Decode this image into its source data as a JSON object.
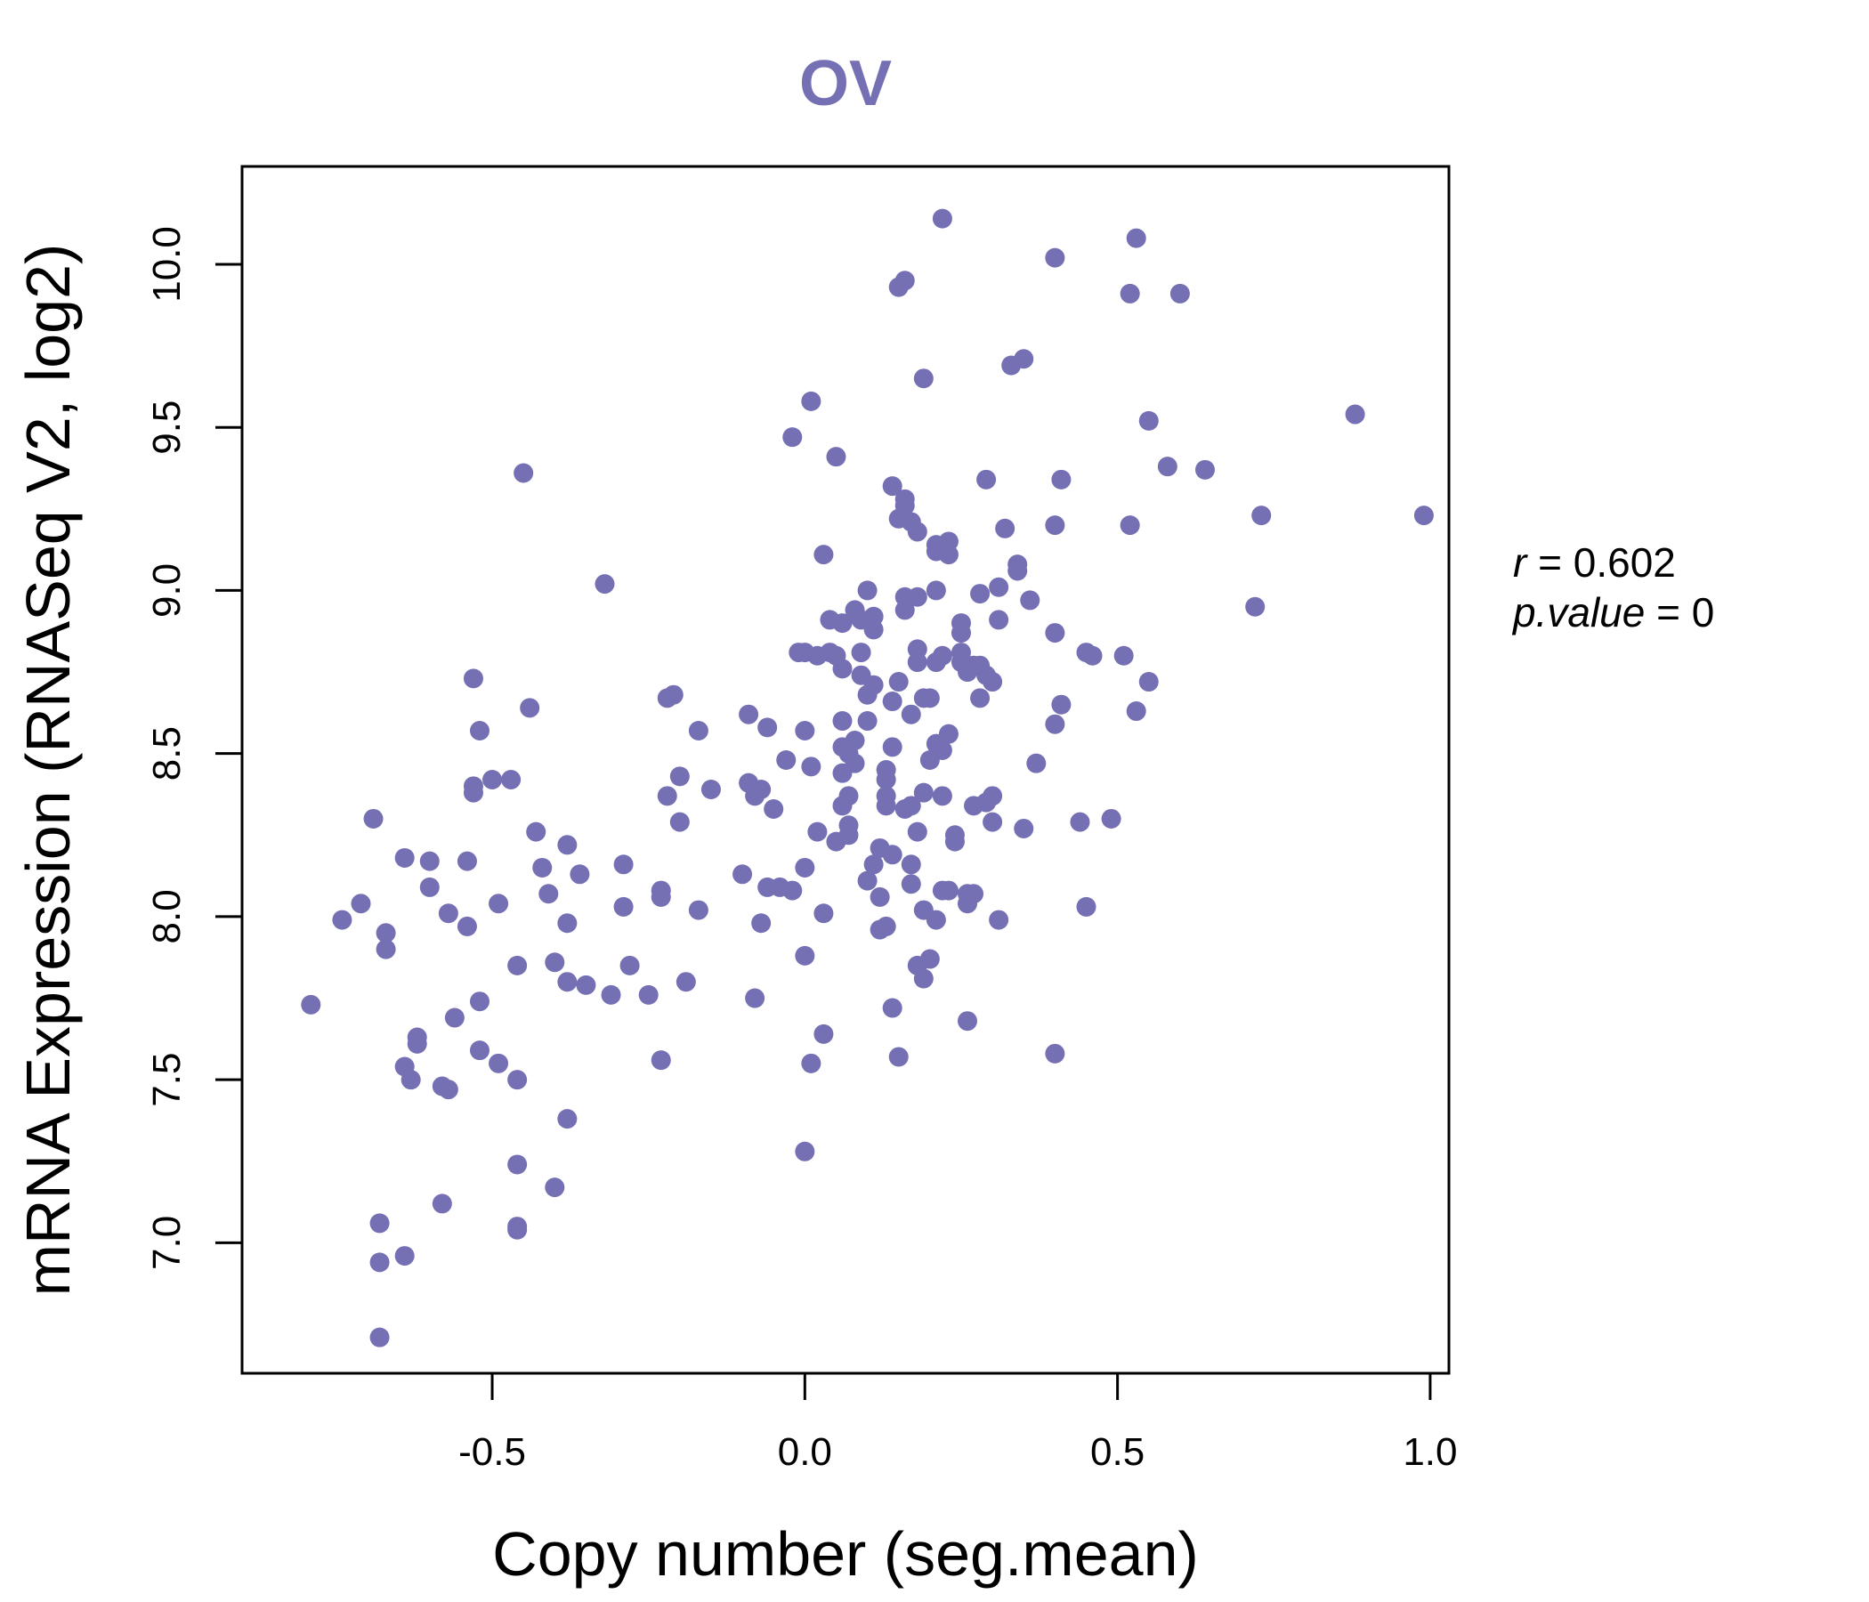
{
  "colors": {
    "accent": "#7570b3",
    "axis": "#000000",
    "background": "#ffffff"
  },
  "chart_data": {
    "type": "scatter",
    "title": "OV",
    "xlabel": "Copy number (seg.mean)",
    "ylabel": "mRNA Expression (RNASeq V2, log2)",
    "xlim": [
      -0.9,
      1.03
    ],
    "ylim": [
      6.6,
      10.3
    ],
    "xticks": [
      -0.5,
      0.0,
      0.5,
      1.0
    ],
    "xtick_labels": [
      "-0.5",
      "0.0",
      "0.5",
      "1.0"
    ],
    "yticks": [
      7.0,
      7.5,
      8.0,
      8.5,
      9.0,
      9.5,
      10.0
    ],
    "ytick_labels": [
      "7.0",
      "7.5",
      "8.0",
      "8.5",
      "9.0",
      "9.5",
      "10.0"
    ],
    "stats": {
      "r_label": "r",
      "r_value": "0.602",
      "p_label": "p.value",
      "p_value": "0"
    },
    "points": [
      [
        -0.79,
        7.73
      ],
      [
        -0.74,
        7.99
      ],
      [
        -0.71,
        8.04
      ],
      [
        -0.69,
        8.3
      ],
      [
        -0.68,
        7.06
      ],
      [
        -0.68,
        6.94
      ],
      [
        -0.68,
        6.71
      ],
      [
        -0.67,
        7.95
      ],
      [
        -0.67,
        7.9
      ],
      [
        -0.64,
        8.18
      ],
      [
        -0.64,
        7.54
      ],
      [
        -0.63,
        7.5
      ],
      [
        -0.64,
        6.96
      ],
      [
        -0.62,
        7.63
      ],
      [
        -0.62,
        7.61
      ],
      [
        -0.6,
        8.17
      ],
      [
        -0.6,
        8.09
      ],
      [
        -0.58,
        7.48
      ],
      [
        -0.57,
        7.47
      ],
      [
        -0.58,
        7.12
      ],
      [
        -0.57,
        8.01
      ],
      [
        -0.56,
        7.69
      ],
      [
        -0.54,
        8.17
      ],
      [
        -0.54,
        7.97
      ],
      [
        -0.53,
        8.4
      ],
      [
        -0.53,
        8.38
      ],
      [
        -0.53,
        8.73
      ],
      [
        -0.52,
        8.57
      ],
      [
        -0.52,
        7.74
      ],
      [
        -0.52,
        7.59
      ],
      [
        -0.5,
        8.42
      ],
      [
        -0.49,
        8.04
      ],
      [
        -0.49,
        7.55
      ],
      [
        -0.47,
        8.42
      ],
      [
        -0.46,
        7.85
      ],
      [
        -0.46,
        7.5
      ],
      [
        -0.46,
        7.24
      ],
      [
        -0.46,
        7.05
      ],
      [
        -0.46,
        7.04
      ],
      [
        -0.45,
        9.36
      ],
      [
        -0.44,
        8.64
      ],
      [
        -0.43,
        8.26
      ],
      [
        -0.42,
        8.15
      ],
      [
        -0.41,
        8.07
      ],
      [
        -0.4,
        7.86
      ],
      [
        -0.4,
        7.17
      ],
      [
        -0.38,
        8.22
      ],
      [
        -0.38,
        7.98
      ],
      [
        -0.38,
        7.8
      ],
      [
        -0.38,
        7.38
      ],
      [
        -0.36,
        8.13
      ],
      [
        -0.35,
        7.79
      ],
      [
        -0.32,
        9.02
      ],
      [
        -0.31,
        7.76
      ],
      [
        -0.29,
        8.16
      ],
      [
        -0.29,
        8.03
      ],
      [
        -0.28,
        7.85
      ],
      [
        -0.25,
        7.76
      ],
      [
        -0.23,
        8.08
      ],
      [
        -0.23,
        8.06
      ],
      [
        -0.23,
        7.56
      ],
      [
        -0.22,
        8.67
      ],
      [
        -0.21,
        8.68
      ],
      [
        -0.22,
        8.37
      ],
      [
        -0.2,
        8.43
      ],
      [
        -0.2,
        8.29
      ],
      [
        -0.19,
        7.8
      ],
      [
        -0.17,
        8.57
      ],
      [
        -0.17,
        8.02
      ],
      [
        -0.15,
        8.39
      ],
      [
        -0.1,
        8.13
      ],
      [
        -0.09,
        8.62
      ],
      [
        -0.09,
        8.41
      ],
      [
        -0.08,
        8.37
      ],
      [
        -0.07,
        8.39
      ],
      [
        -0.07,
        7.98
      ],
      [
        -0.08,
        7.75
      ],
      [
        -0.06,
        8.58
      ],
      [
        -0.06,
        8.09
      ],
      [
        -0.05,
        8.33
      ],
      [
        -0.04,
        8.09
      ],
      [
        -0.03,
        8.48
      ],
      [
        -0.02,
        9.47
      ],
      [
        -0.01,
        8.81
      ],
      [
        -0.02,
        8.08
      ],
      [
        0.0,
        8.81
      ],
      [
        0.0,
        8.57
      ],
      [
        0.0,
        8.15
      ],
      [
        0.0,
        7.88
      ],
      [
        0.0,
        7.28
      ],
      [
        0.01,
        9.58
      ],
      [
        0.02,
        8.8
      ],
      [
        0.01,
        8.46
      ],
      [
        0.01,
        7.55
      ],
      [
        0.02,
        8.26
      ],
      [
        0.03,
        9.11
      ],
      [
        0.03,
        8.01
      ],
      [
        0.04,
        8.91
      ],
      [
        0.04,
        8.81
      ],
      [
        0.03,
        7.64
      ],
      [
        0.05,
        9.41
      ],
      [
        0.05,
        8.8
      ],
      [
        0.06,
        8.9
      ],
      [
        0.06,
        8.76
      ],
      [
        0.06,
        8.6
      ],
      [
        0.06,
        8.52
      ],
      [
        0.06,
        8.44
      ],
      [
        0.06,
        8.34
      ],
      [
        0.05,
        8.23
      ],
      [
        0.07,
        8.28
      ],
      [
        0.07,
        8.25
      ],
      [
        0.07,
        8.5
      ],
      [
        0.07,
        8.37
      ],
      [
        0.08,
        8.94
      ],
      [
        0.08,
        8.54
      ],
      [
        0.08,
        8.47
      ],
      [
        0.09,
        8.91
      ],
      [
        0.09,
        8.81
      ],
      [
        0.1,
        9.0
      ],
      [
        0.09,
        8.74
      ],
      [
        0.1,
        8.6
      ],
      [
        0.11,
        8.92
      ],
      [
        0.11,
        8.88
      ],
      [
        0.11,
        8.71
      ],
      [
        0.1,
        8.68
      ],
      [
        0.11,
        8.16
      ],
      [
        0.1,
        8.11
      ],
      [
        0.12,
        8.21
      ],
      [
        0.12,
        8.06
      ],
      [
        0.13,
        8.45
      ],
      [
        0.13,
        8.42
      ],
      [
        0.13,
        8.37
      ],
      [
        0.12,
        7.96
      ],
      [
        0.13,
        7.97
      ],
      [
        0.13,
        8.34
      ],
      [
        0.14,
        9.32
      ],
      [
        0.14,
        8.66
      ],
      [
        0.14,
        8.52
      ],
      [
        0.14,
        8.19
      ],
      [
        0.14,
        7.72
      ],
      [
        0.15,
        9.22
      ],
      [
        0.15,
        8.72
      ],
      [
        0.15,
        7.57
      ],
      [
        0.15,
        9.93
      ],
      [
        0.16,
        9.95
      ],
      [
        0.16,
        9.28
      ],
      [
        0.16,
        9.26
      ],
      [
        0.16,
        8.98
      ],
      [
        0.16,
        8.94
      ],
      [
        0.17,
        9.21
      ],
      [
        0.16,
        8.33
      ],
      [
        0.17,
        8.16
      ],
      [
        0.17,
        8.1
      ],
      [
        0.17,
        8.34
      ],
      [
        0.17,
        8.62
      ],
      [
        0.18,
        9.18
      ],
      [
        0.18,
        8.98
      ],
      [
        0.18,
        8.82
      ],
      [
        0.18,
        8.78
      ],
      [
        0.18,
        8.26
      ],
      [
        0.18,
        7.85
      ],
      [
        0.19,
        9.65
      ],
      [
        0.19,
        8.67
      ],
      [
        0.19,
        8.38
      ],
      [
        0.19,
        8.02
      ],
      [
        0.19,
        7.81
      ],
      [
        0.2,
        8.67
      ],
      [
        0.2,
        8.48
      ],
      [
        0.2,
        7.87
      ],
      [
        0.21,
        9.14
      ],
      [
        0.21,
        9.12
      ],
      [
        0.21,
        9.0
      ],
      [
        0.21,
        8.78
      ],
      [
        0.21,
        8.53
      ],
      [
        0.21,
        7.99
      ],
      [
        0.22,
        10.14
      ],
      [
        0.22,
        8.8
      ],
      [
        0.22,
        8.51
      ],
      [
        0.22,
        8.08
      ],
      [
        0.23,
        9.15
      ],
      [
        0.23,
        9.11
      ],
      [
        0.22,
        8.37
      ],
      [
        0.23,
        8.56
      ],
      [
        0.23,
        8.08
      ],
      [
        0.24,
        8.25
      ],
      [
        0.24,
        8.23
      ],
      [
        0.25,
        8.9
      ],
      [
        0.25,
        8.87
      ],
      [
        0.25,
        8.81
      ],
      [
        0.25,
        8.78
      ],
      [
        0.26,
        8.75
      ],
      [
        0.26,
        8.07
      ],
      [
        0.26,
        8.04
      ],
      [
        0.27,
        8.07
      ],
      [
        0.26,
        7.68
      ],
      [
        0.27,
        8.77
      ],
      [
        0.27,
        8.34
      ],
      [
        0.28,
        8.99
      ],
      [
        0.28,
        8.77
      ],
      [
        0.28,
        8.67
      ],
      [
        0.29,
        9.34
      ],
      [
        0.29,
        8.74
      ],
      [
        0.29,
        8.35
      ],
      [
        0.3,
        8.72
      ],
      [
        0.3,
        8.37
      ],
      [
        0.3,
        8.29
      ],
      [
        0.31,
        9.01
      ],
      [
        0.31,
        8.91
      ],
      [
        0.31,
        7.99
      ],
      [
        0.32,
        9.19
      ],
      [
        0.33,
        9.69
      ],
      [
        0.34,
        9.08
      ],
      [
        0.34,
        9.06
      ],
      [
        0.35,
        8.27
      ],
      [
        0.35,
        9.71
      ],
      [
        0.36,
        8.97
      ],
      [
        0.37,
        8.47
      ],
      [
        0.4,
        10.02
      ],
      [
        0.4,
        9.2
      ],
      [
        0.4,
        8.87
      ],
      [
        0.4,
        8.59
      ],
      [
        0.4,
        7.58
      ],
      [
        0.41,
        9.34
      ],
      [
        0.41,
        8.65
      ],
      [
        0.44,
        8.29
      ],
      [
        0.45,
        8.81
      ],
      [
        0.46,
        8.8
      ],
      [
        0.45,
        8.03
      ],
      [
        0.49,
        8.3
      ],
      [
        0.51,
        8.8
      ],
      [
        0.52,
        9.91
      ],
      [
        0.52,
        9.2
      ],
      [
        0.53,
        10.08
      ],
      [
        0.53,
        8.63
      ],
      [
        0.55,
        9.52
      ],
      [
        0.55,
        8.72
      ],
      [
        0.58,
        9.38
      ],
      [
        0.6,
        9.91
      ],
      [
        0.64,
        9.37
      ],
      [
        0.72,
        8.95
      ],
      [
        0.73,
        9.23
      ],
      [
        0.88,
        9.54
      ],
      [
        0.99,
        9.23
      ]
    ]
  }
}
